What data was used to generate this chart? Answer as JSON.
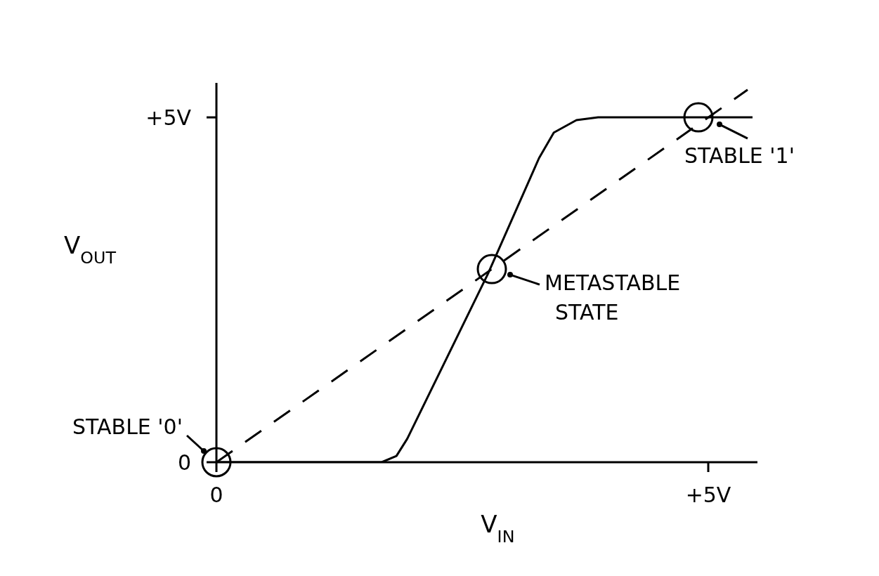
{
  "chart_data": {
    "type": "line",
    "xlabel": "V$_{IN}$",
    "ylabel": "V$_{OUT}$",
    "xlim": [
      0,
      5.5
    ],
    "ylim": [
      0,
      5.5
    ],
    "xticks": [
      0,
      {
        "value": 5,
        "label": "+5V"
      }
    ],
    "yticks": [
      0,
      {
        "value": 5,
        "label": "+5V"
      }
    ],
    "grid": false,
    "legend": false,
    "marker": "none",
    "series": [
      {
        "color": "#000000",
        "line_style": "solid",
        "x": [
          0,
          1.68,
          1.83,
          1.94,
          2.76,
          3.28,
          3.43,
          3.66,
          3.88,
          5.45
        ],
        "values": [
          0,
          0,
          0.09,
          0.34,
          2.73,
          4.41,
          4.78,
          4.96,
          5,
          5
        ]
      },
      {
        "color": "#000000",
        "line_style": "dashed",
        "x": [
          0,
          5.4
        ],
        "values": [
          0,
          5.4
        ]
      }
    ],
    "annotations": [
      {
        "text": "STABLE '0'",
        "x": 0,
        "y": 0
      },
      {
        "text": "METASTABLE STATE",
        "x": 2.8,
        "y": 2.8
      },
      {
        "text": "STABLE '1'",
        "x": 4.9,
        "y": 5
      }
    ]
  }
}
